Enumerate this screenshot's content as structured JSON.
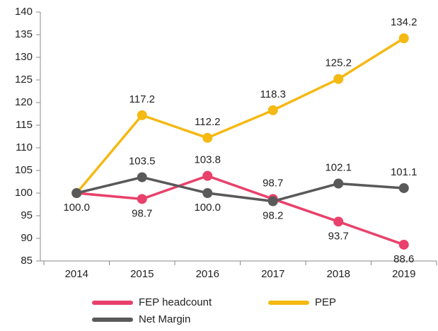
{
  "chart_data": {
    "type": "line",
    "categories": [
      "2014",
      "2015",
      "2016",
      "2017",
      "2018",
      "2019"
    ],
    "series": [
      {
        "name": "FEP headcount",
        "color": "#e8416b",
        "values": [
          100,
          98.7,
          103.8,
          98.7,
          93.7,
          88.6
        ],
        "value_labels": [
          "100.0",
          "98.7",
          "103.8",
          "98.7",
          "93.7",
          "88.6"
        ]
      },
      {
        "name": "PEP",
        "color": "#f5b914",
        "values": [
          100,
          117.2,
          112.2,
          118.3,
          125.2,
          134.2
        ],
        "value_labels": [
          null,
          "117.2",
          "112.2",
          "118.3",
          "125.2",
          "134.2"
        ]
      },
      {
        "name": "Net Margin",
        "color": "#595959",
        "values": [
          100,
          103.5,
          100,
          98.2,
          102.1,
          101.1
        ],
        "value_labels": [
          null,
          "103.5",
          "100.0",
          "98.2",
          "102.1",
          "101.1"
        ]
      }
    ],
    "ylim": [
      85,
      140
    ],
    "yticks": [
      85,
      90,
      95,
      100,
      105,
      110,
      115,
      120,
      125,
      130,
      135,
      140
    ]
  }
}
